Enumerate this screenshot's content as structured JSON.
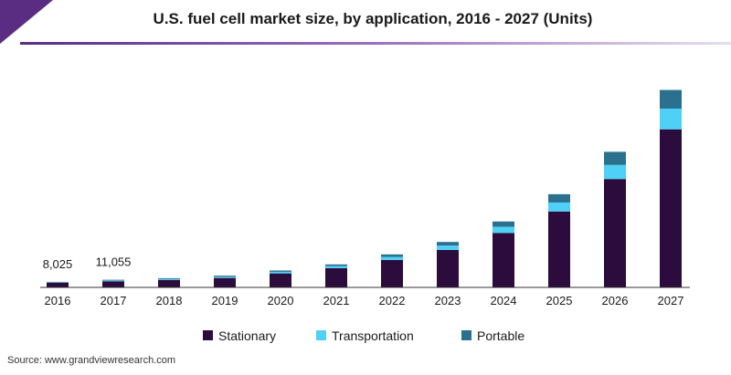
{
  "chart_data": {
    "type": "bar",
    "stacked": true,
    "title": "U.S. fuel cell market size, by application, 2016 - 2027 (Units)",
    "xlabel": "",
    "ylabel": "",
    "categories": [
      "2016",
      "2017",
      "2018",
      "2019",
      "2020",
      "2021",
      "2022",
      "2023",
      "2024",
      "2025",
      "2026",
      "2027"
    ],
    "series": [
      {
        "name": "Stationary",
        "color": "#2b0c3d",
        "values": [
          7000,
          8900,
          10800,
          13700,
          20300,
          27900,
          39800,
          54300,
          78900,
          110000,
          157000,
          229000
        ]
      },
      {
        "name": "Transportation",
        "color": "#4fd0f6",
        "values": [
          600,
          1155,
          1300,
          1700,
          2300,
          3000,
          4400,
          6300,
          9000,
          13000,
          20400,
          30000
        ]
      },
      {
        "name": "Portable",
        "color": "#2a7190",
        "values": [
          425,
          1000,
          1200,
          1600,
          1900,
          2400,
          3600,
          5200,
          7600,
          12000,
          19000,
          27000
        ]
      }
    ],
    "data_labels": [
      {
        "category": "2016",
        "text": "8,025"
      },
      {
        "category": "2017",
        "text": "11,055"
      }
    ],
    "ylim": [
      0,
      300000
    ],
    "grid": false,
    "legend": "bottom-center",
    "source": "Source: www.grandviewresearch.com",
    "brand_color": "#5a2d82"
  }
}
